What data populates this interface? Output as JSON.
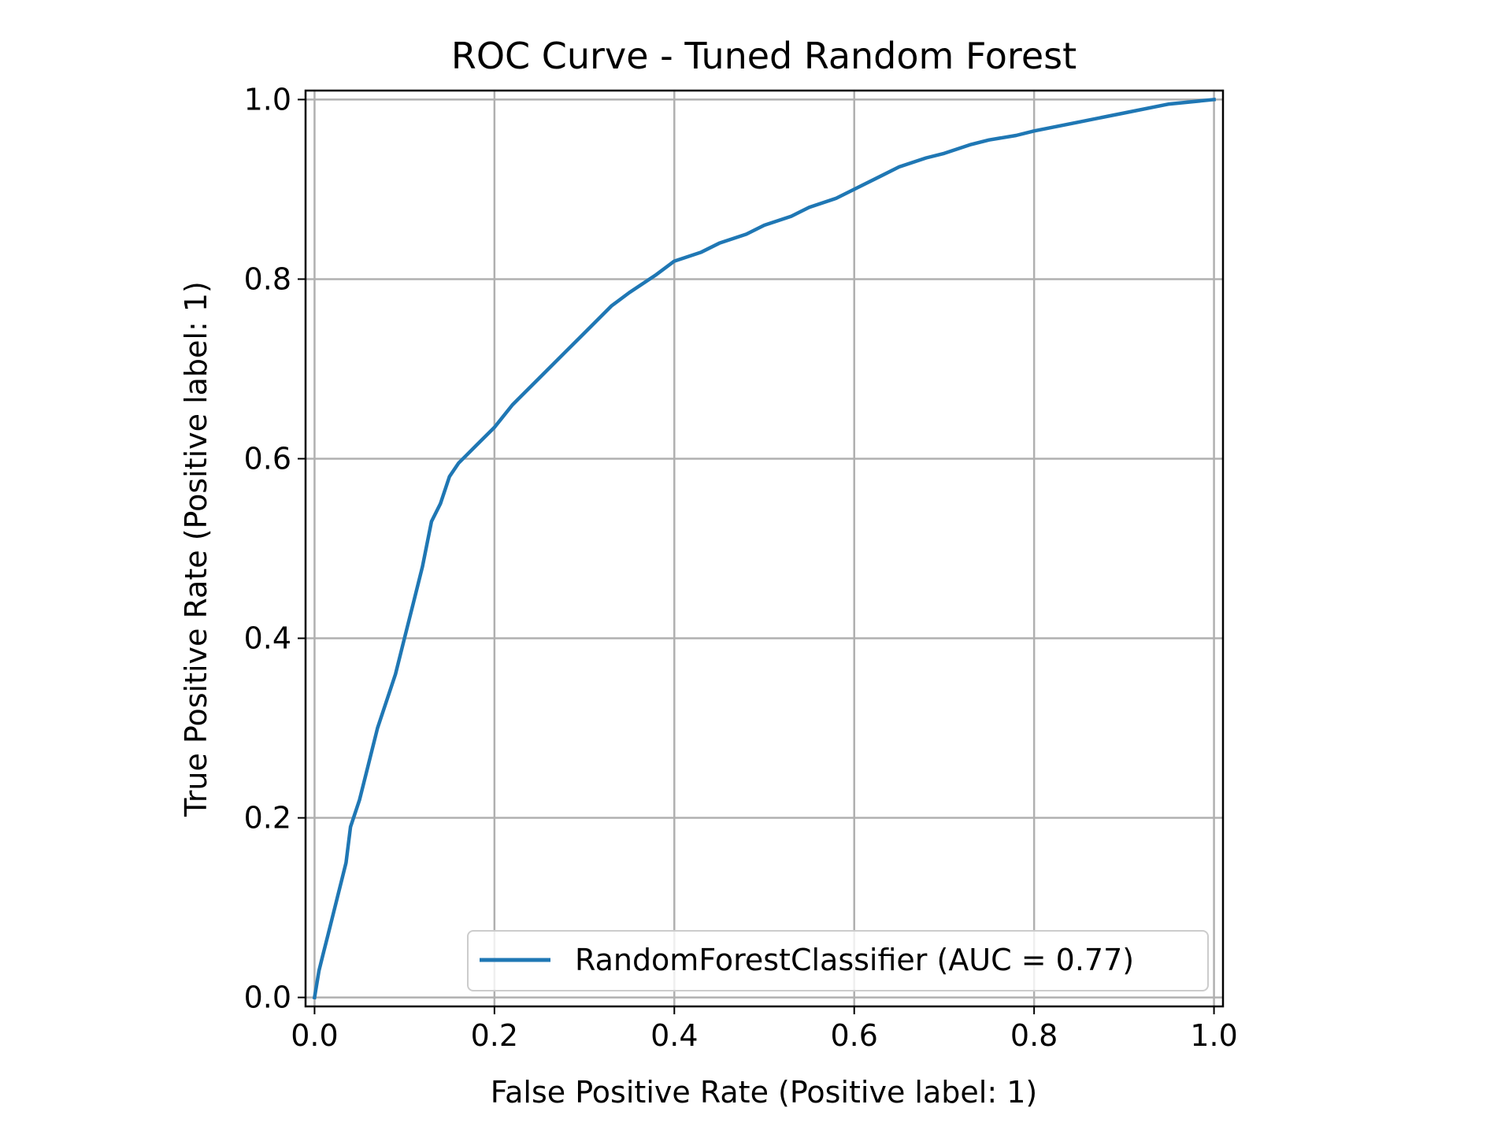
{
  "chart_data": {
    "type": "line",
    "title": "ROC Curve - Tuned Random Forest",
    "xlabel": "False Positive Rate (Positive label: 1)",
    "ylabel": "True Positive Rate (Positive label: 1)",
    "xlim": [
      -0.01,
      1.01
    ],
    "ylim": [
      -0.01,
      1.01
    ],
    "grid": true,
    "legend_position": "lower-right",
    "x_ticks": [
      "0.0",
      "0.2",
      "0.4",
      "0.6",
      "0.8",
      "1.0"
    ],
    "y_ticks": [
      "0.0",
      "0.2",
      "0.4",
      "0.6",
      "0.8",
      "1.0"
    ],
    "tick_values": [
      0,
      0.2,
      0.4,
      0.6,
      0.8,
      1.0
    ],
    "series": [
      {
        "name": "RandomForestClassifier (AUC = 0.77)",
        "color": "#1f77b4",
        "x": [
          0.0,
          0.005,
          0.01,
          0.015,
          0.02,
          0.025,
          0.03,
          0.035,
          0.04,
          0.05,
          0.06,
          0.07,
          0.08,
          0.09,
          0.1,
          0.11,
          0.12,
          0.13,
          0.14,
          0.15,
          0.16,
          0.17,
          0.18,
          0.2,
          0.22,
          0.25,
          0.28,
          0.3,
          0.33,
          0.35,
          0.38,
          0.4,
          0.43,
          0.45,
          0.48,
          0.5,
          0.53,
          0.55,
          0.58,
          0.6,
          0.63,
          0.65,
          0.68,
          0.7,
          0.73,
          0.75,
          0.78,
          0.8,
          0.85,
          0.9,
          0.95,
          1.0
        ],
        "y": [
          0.0,
          0.03,
          0.05,
          0.07,
          0.09,
          0.11,
          0.13,
          0.15,
          0.19,
          0.22,
          0.26,
          0.3,
          0.33,
          0.36,
          0.4,
          0.44,
          0.48,
          0.53,
          0.55,
          0.58,
          0.595,
          0.605,
          0.615,
          0.635,
          0.66,
          0.69,
          0.72,
          0.74,
          0.77,
          0.785,
          0.805,
          0.82,
          0.83,
          0.84,
          0.85,
          0.86,
          0.87,
          0.88,
          0.89,
          0.9,
          0.915,
          0.925,
          0.935,
          0.94,
          0.95,
          0.955,
          0.96,
          0.965,
          0.975,
          0.985,
          0.995,
          1.0
        ]
      }
    ]
  }
}
